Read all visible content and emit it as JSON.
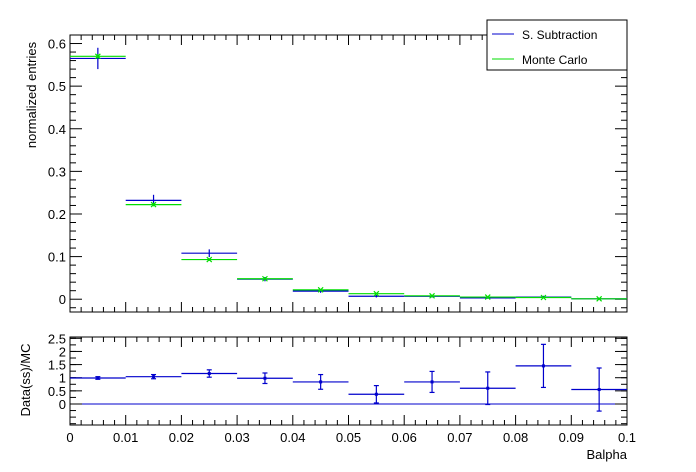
{
  "chart_data": [
    {
      "type": "scatter",
      "ylabel": "normalized entries",
      "xlim": [
        0,
        0.1
      ],
      "ylim": [
        -0.03,
        0.62
      ],
      "y_ticks": [
        "0",
        "0.1",
        "0.2",
        "0.3",
        "0.4",
        "0.5",
        "0.6"
      ],
      "legend_position": "top-right",
      "series": [
        {
          "name": "S. Subtraction",
          "color": "#0000cc",
          "x": [
            0.005,
            0.015,
            0.025,
            0.035,
            0.045,
            0.055,
            0.065,
            0.075,
            0.085,
            0.095
          ],
          "values": [
            0.565,
            0.232,
            0.108,
            0.047,
            0.019,
            0.007,
            0.007,
            0.003,
            0.005,
            0.001
          ],
          "errors": [
            0.025,
            0.013,
            0.009,
            0.005,
            0.004,
            0.003,
            0.003,
            0.002,
            0.003,
            0.002
          ]
        },
        {
          "name": "Monte Carlo",
          "color": "#00dd00",
          "x": [
            0.005,
            0.015,
            0.025,
            0.035,
            0.045,
            0.055,
            0.065,
            0.075,
            0.085,
            0.095
          ],
          "values": [
            0.57,
            0.222,
            0.093,
            0.048,
            0.022,
            0.013,
            0.008,
            0.005,
            0.004,
            0.001
          ],
          "errors": [
            0.005,
            0.004,
            0.003,
            0.002,
            0.002,
            0.001,
            0.001,
            0.001,
            0.001,
            0.001
          ]
        }
      ]
    },
    {
      "type": "scatter",
      "xlabel": "Balpha",
      "ylabel": "Data(ss)/MC",
      "xlim": [
        0,
        0.1
      ],
      "ylim": [
        -0.8,
        2.55
      ],
      "x_ticks": [
        "0",
        "0.01",
        "0.02",
        "0.03",
        "0.04",
        "0.05",
        "0.06",
        "0.07",
        "0.08",
        "0.09",
        "0.1"
      ],
      "y_ticks": [
        "0",
        "0.5",
        "1",
        "1.5",
        "2",
        "2.5"
      ],
      "series": [
        {
          "color": "#0000cc",
          "x": [
            0.005,
            0.015,
            0.025,
            0.035,
            0.045,
            0.055,
            0.065,
            0.075,
            0.085,
            0.095
          ],
          "values": [
            0.99,
            1.04,
            1.16,
            0.98,
            0.84,
            0.37,
            0.84,
            0.6,
            1.45,
            0.55
          ],
          "errors": [
            0.05,
            0.08,
            0.14,
            0.2,
            0.28,
            0.33,
            0.4,
            0.62,
            0.82,
            0.82
          ]
        }
      ]
    }
  ]
}
